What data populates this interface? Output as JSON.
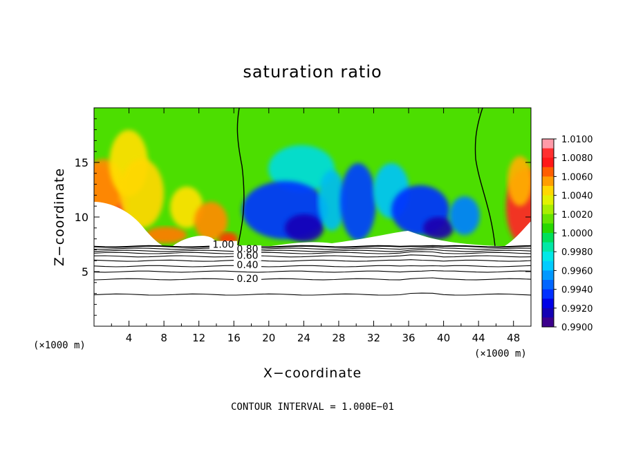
{
  "chart_data": {
    "type": "heatmap",
    "title": "saturation ratio",
    "xlabel": "X−coordinate",
    "ylabel": "Z−coordinate",
    "x_unit_left": "(×1000 m)",
    "x_unit_right": "(×1000 m)",
    "footer": "CONTOUR INTERVAL = 1.000E−01",
    "xlim": [
      0,
      50
    ],
    "ylim": [
      0,
      20
    ],
    "x_ticks": [
      "4",
      "8",
      "12",
      "16",
      "20",
      "24",
      "28",
      "32",
      "36",
      "40",
      "44",
      "48"
    ],
    "y_ticks": [
      "5",
      "10",
      "15"
    ],
    "colorbar": {
      "min": 0.99,
      "max": 1.01,
      "labels": [
        "1.0100",
        "1.0080",
        "1.0060",
        "1.0040",
        "1.0020",
        "1.0000",
        "0.9980",
        "0.9960",
        "0.9940",
        "0.9920",
        "0.9900"
      ]
    },
    "contour_labels": [
      "1.00",
      "0.80",
      "0.60",
      "0.40",
      "0.20"
    ],
    "contour_levels": [
      1.0,
      0.9,
      0.8,
      0.7,
      0.6,
      0.5,
      0.4,
      0.3,
      0.2,
      0.1
    ],
    "contour_heights": [
      7.3,
      7.1,
      6.9,
      6.7,
      6.4,
      6.0,
      5.5,
      5.0,
      4.3,
      2.9
    ]
  }
}
